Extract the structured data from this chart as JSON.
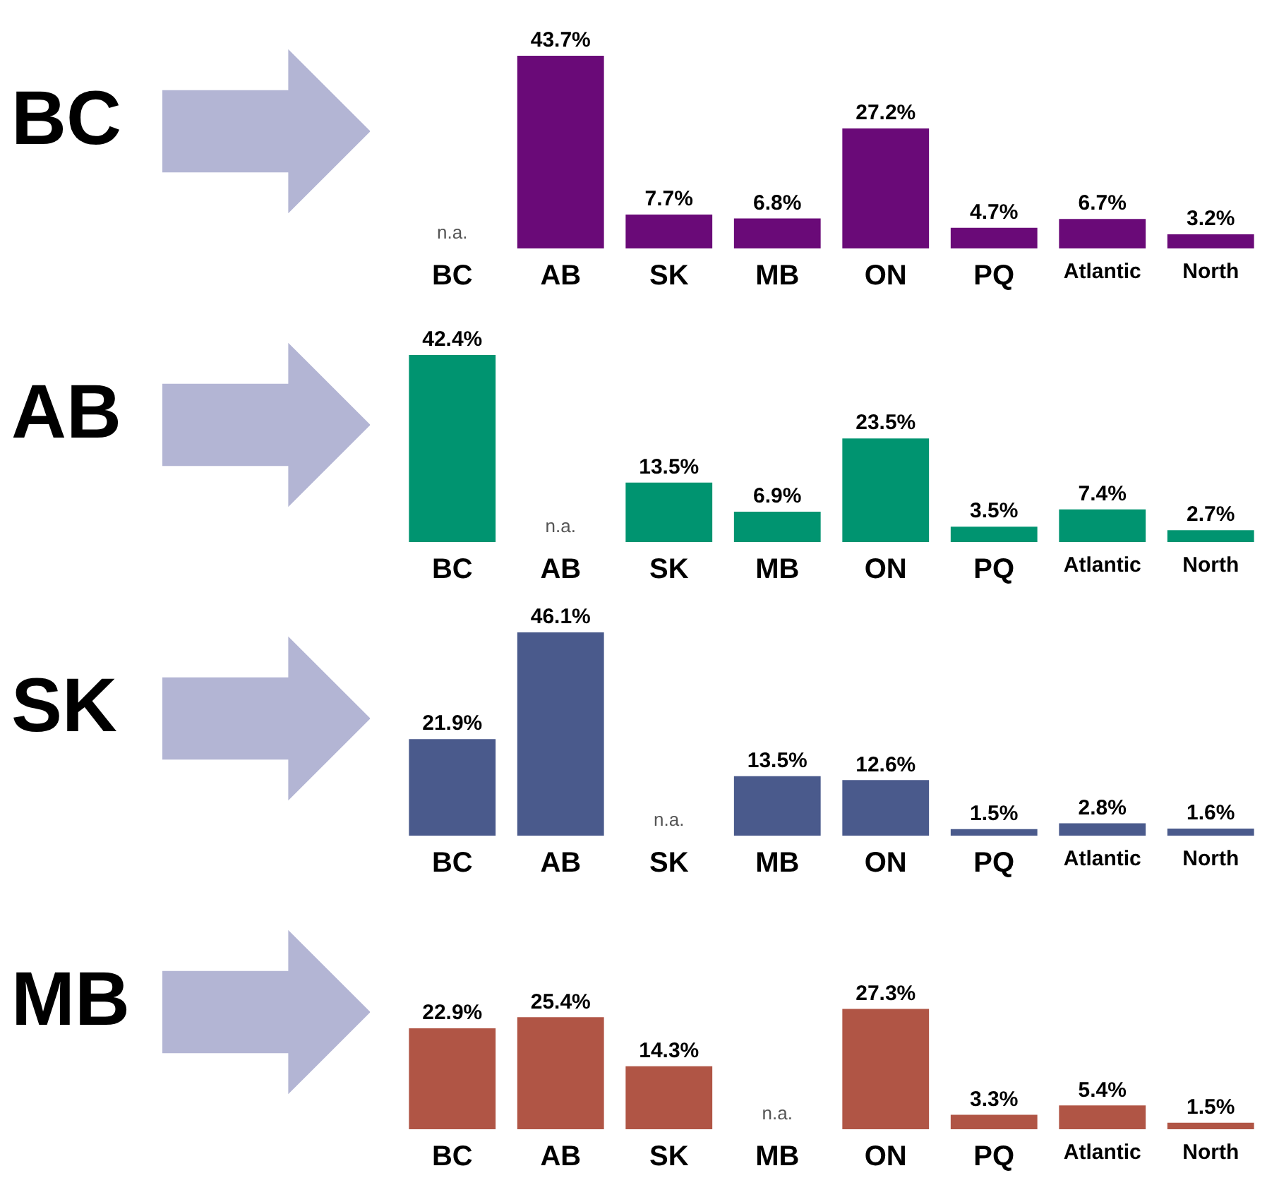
{
  "chart_data": [
    {
      "type": "bar",
      "title": "BC",
      "categories": [
        "BC",
        "AB",
        "SK",
        "MB",
        "ON",
        "PQ",
        "Atlantic",
        "North"
      ],
      "values": [
        null,
        43.7,
        7.7,
        6.8,
        27.2,
        4.7,
        6.7,
        3.2
      ],
      "value_labels": [
        "n.a.",
        "43.7%",
        "7.7%",
        "6.8%",
        "27.2%",
        "4.7%",
        "6.7%",
        "3.2%"
      ],
      "color": "#6a0a78"
    },
    {
      "type": "bar",
      "title": "AB",
      "categories": [
        "BC",
        "AB",
        "SK",
        "MB",
        "ON",
        "PQ",
        "Atlantic",
        "North"
      ],
      "values": [
        42.4,
        null,
        13.5,
        6.9,
        23.5,
        3.5,
        7.4,
        2.7
      ],
      "value_labels": [
        "42.4%",
        "n.a.",
        "13.5%",
        "6.9%",
        "23.5%",
        "3.5%",
        "7.4%",
        "2.7%"
      ],
      "color": "#009470"
    },
    {
      "type": "bar",
      "title": "SK",
      "categories": [
        "BC",
        "AB",
        "SK",
        "MB",
        "ON",
        "PQ",
        "Atlantic",
        "North"
      ],
      "values": [
        21.9,
        46.1,
        null,
        13.5,
        12.6,
        1.5,
        2.8,
        1.6
      ],
      "value_labels": [
        "21.9%",
        "46.1%",
        "n.a.",
        "13.5%",
        "12.6%",
        "1.5%",
        "2.8%",
        "1.6%"
      ],
      "color": "#4a5a8c"
    },
    {
      "type": "bar",
      "title": "MB",
      "categories": [
        "BC",
        "AB",
        "SK",
        "MB",
        "ON",
        "PQ",
        "Atlantic",
        "North"
      ],
      "values": [
        22.9,
        25.4,
        14.3,
        null,
        27.3,
        3.3,
        5.4,
        1.5
      ],
      "value_labels": [
        "22.9%",
        "25.4%",
        "14.3%",
        "n.a.",
        "27.3%",
        "3.3%",
        "5.4%",
        "1.5%"
      ],
      "color": "#b05545"
    }
  ]
}
